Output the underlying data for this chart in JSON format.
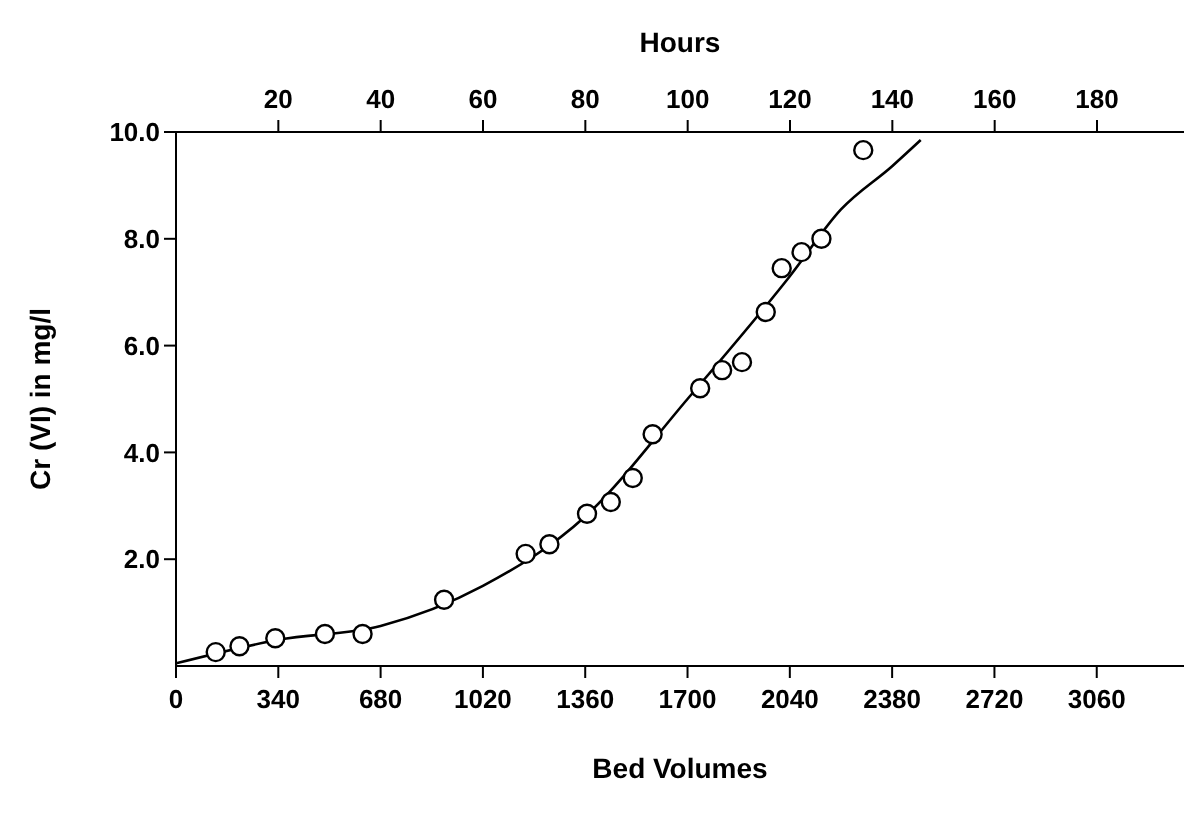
{
  "chart_data": {
    "type": "scatter",
    "xlabel": "Bed Volumes",
    "ylabel": "Cr (VI) in mg/l",
    "x2label": "Hours",
    "xlim": [
      0,
      3350
    ],
    "xticks": [
      0,
      340,
      680,
      1020,
      1360,
      1700,
      2040,
      2380,
      2720,
      3060
    ],
    "x2lim": [
      0,
      197
    ],
    "x2ticks": [
      20,
      40,
      60,
      80,
      100,
      120,
      140,
      160,
      180
    ],
    "ylim": [
      0,
      10
    ],
    "yticks": [
      {
        "value": 2,
        "label": "2.0"
      },
      {
        "value": 4,
        "label": "4.0"
      },
      {
        "value": 6,
        "label": "6.0"
      },
      {
        "value": 8,
        "label": "8.0"
      },
      {
        "value": 10,
        "label": "10.0"
      }
    ],
    "grid": false,
    "legend": false,
    "series": [
      {
        "type": "scatter",
        "marker": "circle",
        "color": "#000000",
        "x": [
          132,
          211,
          330,
          495,
          620,
          891,
          1162,
          1241,
          1366,
          1445,
          1518,
          1584,
          1742,
          1815,
          1881,
          1960,
          2013,
          2079,
          2145,
          2284
        ],
        "values": [
          0.26,
          0.37,
          0.52,
          0.6,
          0.6,
          1.24,
          2.1,
          2.28,
          2.85,
          3.07,
          3.52,
          4.34,
          5.2,
          5.54,
          5.69,
          6.63,
          7.45,
          7.75,
          8.0,
          9.66
        ]
      },
      {
        "type": "line",
        "marker": "none",
        "color": "#000000",
        "line_style": "solid",
        "x": [
          0,
          340,
          680,
          1020,
          1360,
          1700,
          2040,
          2210,
          2380,
          2475
        ],
        "values": [
          0.05,
          0.49,
          0.75,
          1.5,
          2.8,
          5.0,
          7.3,
          8.55,
          9.36,
          9.85
        ]
      }
    ]
  }
}
